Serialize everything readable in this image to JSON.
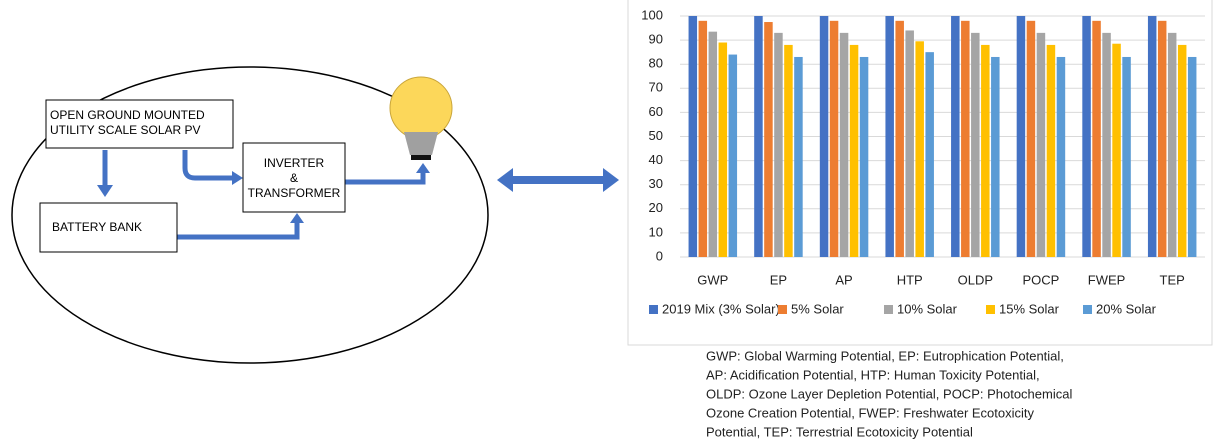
{
  "diagram": {
    "solar_pv": [
      "OPEN GROUND MOUNTED",
      "UTILITY SCALE SOLAR PV"
    ],
    "battery": "BATTERY BANK",
    "inverter": [
      "INVERTER",
      "&",
      "TRANSFORMER"
    ]
  },
  "chart_data": {
    "type": "bar",
    "categories": [
      "GWP",
      "EP",
      "AP",
      "HTP",
      "OLDP",
      "POCP",
      "FWEP",
      "TEP"
    ],
    "series": [
      {
        "name": "2019 Mix (3% Solar)",
        "color": "#4472c4",
        "values": [
          100,
          100,
          100,
          100,
          100,
          100,
          100,
          100
        ]
      },
      {
        "name": "5% Solar",
        "color": "#ed7d31",
        "values": [
          98,
          97.5,
          98,
          98,
          98,
          98,
          98,
          98
        ]
      },
      {
        "name": "10% Solar",
        "color": "#a5a5a5",
        "values": [
          93.5,
          93,
          93,
          94,
          93,
          93,
          93,
          93
        ]
      },
      {
        "name": "15% Solar",
        "color": "#ffc000",
        "values": [
          89,
          88,
          88,
          89.5,
          88,
          88,
          88.5,
          88
        ]
      },
      {
        "name": "20% Solar",
        "color": "#5b9bd5",
        "values": [
          84,
          83,
          83,
          85,
          83,
          83,
          83,
          83
        ]
      }
    ],
    "ylim": [
      0,
      100
    ],
    "yticks": [
      0,
      10,
      20,
      30,
      40,
      50,
      60,
      70,
      80,
      90,
      100
    ],
    "grid": true
  },
  "caption": [
    "GWP: Global Warming Potential, EP: Eutrophication Potential,",
    "AP: Acidification Potential, HTP: Human Toxicity Potential,",
    "OLDP: Ozone Layer Depletion Potential, POCP: Photochemical",
    "Ozone Creation Potential, FWEP: Freshwater Ecotoxicity",
    "Potential, TEP: Terrestrial Ecotoxicity Potential"
  ]
}
